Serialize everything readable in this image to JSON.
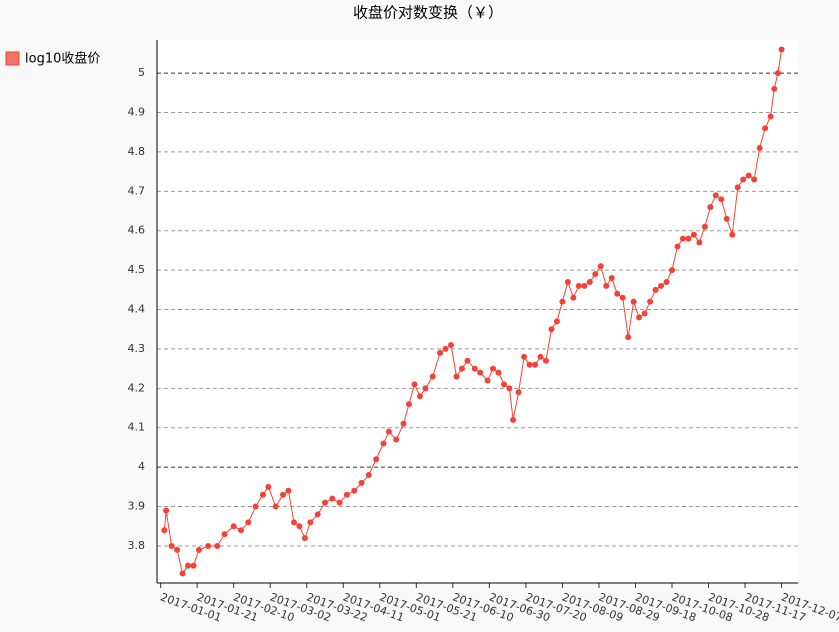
{
  "chart_data": {
    "type": "line",
    "title": "收盘价对数变换（￥）",
    "x": [
      "2017-01-03",
      "2017-01-04",
      "2017-01-07",
      "2017-01-10",
      "2017-01-13",
      "2017-01-16",
      "2017-01-19",
      "2017-01-22",
      "2017-01-27",
      "2017-02-01",
      "2017-02-05",
      "2017-02-10",
      "2017-02-14",
      "2017-02-18",
      "2017-02-22",
      "2017-02-26",
      "2017-03-01",
      "2017-03-05",
      "2017-03-09",
      "2017-03-12",
      "2017-03-15",
      "2017-03-18",
      "2017-03-21",
      "2017-03-24",
      "2017-03-28",
      "2017-04-01",
      "2017-04-05",
      "2017-04-09",
      "2017-04-13",
      "2017-04-17",
      "2017-04-21",
      "2017-04-25",
      "2017-04-29",
      "2017-05-03",
      "2017-05-06",
      "2017-05-10",
      "2017-05-14",
      "2017-05-17",
      "2017-05-20",
      "2017-05-23",
      "2017-05-26",
      "2017-05-30",
      "2017-06-03",
      "2017-06-06",
      "2017-06-09",
      "2017-06-12",
      "2017-06-15",
      "2017-06-18",
      "2017-06-22",
      "2017-06-25",
      "2017-06-29",
      "2017-07-02",
      "2017-07-05",
      "2017-07-08",
      "2017-07-11",
      "2017-07-13",
      "2017-07-16",
      "2017-07-19",
      "2017-07-22",
      "2017-07-25",
      "2017-07-28",
      "2017-07-31",
      "2017-08-03",
      "2017-08-06",
      "2017-08-09",
      "2017-08-12",
      "2017-08-15",
      "2017-08-18",
      "2017-08-21",
      "2017-08-24",
      "2017-08-27",
      "2017-08-30",
      "2017-09-02",
      "2017-09-05",
      "2017-09-08",
      "2017-09-11",
      "2017-09-14",
      "2017-09-17",
      "2017-09-20",
      "2017-09-23",
      "2017-09-26",
      "2017-09-29",
      "2017-10-02",
      "2017-10-05",
      "2017-10-08",
      "2017-10-11",
      "2017-10-14",
      "2017-10-17",
      "2017-10-20",
      "2017-10-23",
      "2017-10-26",
      "2017-10-29",
      "2017-11-01",
      "2017-11-04",
      "2017-11-07",
      "2017-11-10",
      "2017-11-13",
      "2017-11-16",
      "2017-11-19",
      "2017-11-22",
      "2017-11-25",
      "2017-11-28",
      "2017-12-01",
      "2017-12-03",
      "2017-12-05",
      "2017-12-07"
    ],
    "series": [
      {
        "name": "log10收盘价",
        "color": "#F44336",
        "values": [
          3.84,
          3.89,
          3.8,
          3.79,
          3.73,
          3.75,
          3.75,
          3.79,
          3.8,
          3.8,
          3.83,
          3.85,
          3.84,
          3.86,
          3.9,
          3.93,
          3.95,
          3.9,
          3.93,
          3.94,
          3.86,
          3.85,
          3.82,
          3.86,
          3.88,
          3.91,
          3.92,
          3.91,
          3.93,
          3.94,
          3.96,
          3.98,
          4.02,
          4.06,
          4.09,
          4.07,
          4.11,
          4.16,
          4.21,
          4.18,
          4.2,
          4.23,
          4.29,
          4.3,
          4.31,
          4.23,
          4.25,
          4.27,
          4.25,
          4.24,
          4.22,
          4.25,
          4.24,
          4.21,
          4.2,
          4.12,
          4.19,
          4.28,
          4.26,
          4.26,
          4.28,
          4.27,
          4.35,
          4.37,
          4.42,
          4.47,
          4.43,
          4.46,
          4.46,
          4.47,
          4.49,
          4.51,
          4.46,
          4.48,
          4.44,
          4.43,
          4.33,
          4.42,
          4.38,
          4.39,
          4.42,
          4.45,
          4.46,
          4.47,
          4.5,
          4.56,
          4.58,
          4.58,
          4.59,
          4.57,
          4.61,
          4.66,
          4.69,
          4.68,
          4.63,
          4.59,
          4.71,
          4.73,
          4.74,
          4.73,
          4.81,
          4.86,
          4.89,
          4.96,
          5.0,
          5.06
        ]
      }
    ],
    "xlim": [
      "2016-12-30",
      "2017-12-16"
    ],
    "xticks": [
      "2017-01-01",
      "2017-01-21",
      "2017-02-10",
      "2017-03-02",
      "2017-03-22",
      "2017-04-11",
      "2017-05-01",
      "2017-05-21",
      "2017-06-10",
      "2017-06-30",
      "2017-07-20",
      "2017-08-09",
      "2017-08-29",
      "2017-09-18",
      "2017-10-08",
      "2017-10-28",
      "2017-11-17",
      "2017-12-07"
    ],
    "ylim": [
      3.706,
      5.084
    ],
    "yticks": [
      3.8,
      3.9,
      4,
      4.1,
      4.2,
      4.3,
      4.4,
      4.5,
      4.6,
      4.7,
      4.8,
      4.9,
      5
    ],
    "grid": true
  }
}
